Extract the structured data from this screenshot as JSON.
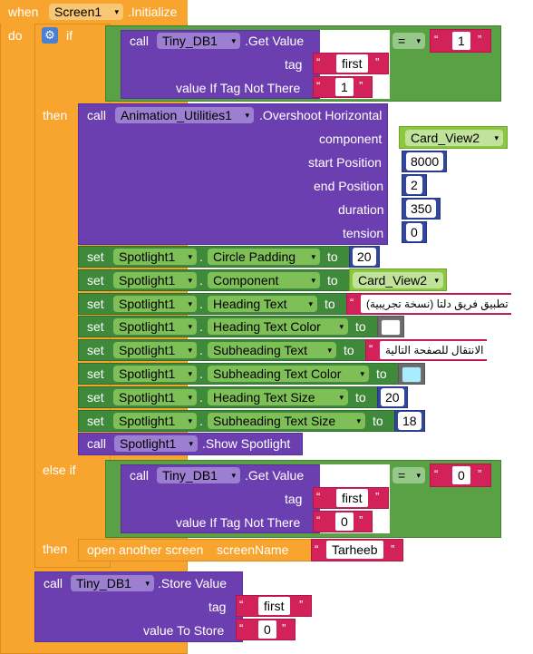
{
  "when_label": "when",
  "event_component": "Screen1",
  "event_name": ".Initialize",
  "do_label": "do",
  "if_label": "if",
  "then_label": "then",
  "else_if_label": "else if",
  "call_label": "call",
  "set_label": "set",
  "to_label": "to",
  "dropdown_arrow": "▾",
  "quote_open": "“",
  "quote_close": "”",
  "if1": {
    "db_component": "Tiny_DB1",
    "method": ".Get Value",
    "tag_label": "tag",
    "tag_value": "first",
    "default_label": "value If Tag Not There",
    "default_value": "1",
    "compare_op": "=",
    "compare_value": "1"
  },
  "anim": {
    "component": "Animation_Utilities1",
    "method": ".Overshoot Horizontal",
    "params": [
      {
        "label": "component",
        "value": "Card_View2"
      },
      {
        "label": "start Position",
        "value": "8000"
      },
      {
        "label": "end Position",
        "value": "2"
      },
      {
        "label": "duration",
        "value": "350"
      },
      {
        "label": "tension",
        "value": "0"
      }
    ]
  },
  "sets": [
    {
      "component": "Spotlight1",
      "property": "Circle Padding",
      "value": "20",
      "kind": "number"
    },
    {
      "component": "Spotlight1",
      "property": "Component",
      "value": "Card_View2",
      "kind": "component"
    },
    {
      "component": "Spotlight1",
      "property": "Heading Text",
      "value": "تطبيق فريق دلتا (نسخة تجريبية)",
      "kind": "text"
    },
    {
      "component": "Spotlight1",
      "property": "Heading Text Color",
      "value": "",
      "kind": "color",
      "color": "#ffffff"
    },
    {
      "component": "Spotlight1",
      "property": "Subheading Text",
      "value": "الانتقال للصفحة التالية",
      "kind": "text"
    },
    {
      "component": "Spotlight1",
      "property": "Subheading Text Color",
      "value": "",
      "kind": "color",
      "color": "#a8ecff"
    },
    {
      "component": "Spotlight1",
      "property": "Heading Text Size",
      "value": "20",
      "kind": "number"
    },
    {
      "component": "Spotlight1",
      "property": "Subheading Text Size",
      "value": "18",
      "kind": "number"
    }
  ],
  "show": {
    "component": "Spotlight1",
    "method": ".Show Spotlight"
  },
  "if2": {
    "db_component": "Tiny_DB1",
    "method": ".Get Value",
    "tag_label": "tag",
    "tag_value": "first",
    "default_label": "value If Tag Not There",
    "default_value": "0",
    "compare_op": "=",
    "compare_value": "0"
  },
  "open_screen": {
    "label": "open another screen",
    "param_label": "screenName",
    "value": "Tarheeb"
  },
  "store": {
    "db_component": "Tiny_DB1",
    "method": ".Store Value",
    "tag_label": "tag",
    "tag_value": "first",
    "value_label": "value To Store",
    "value": "0"
  }
}
